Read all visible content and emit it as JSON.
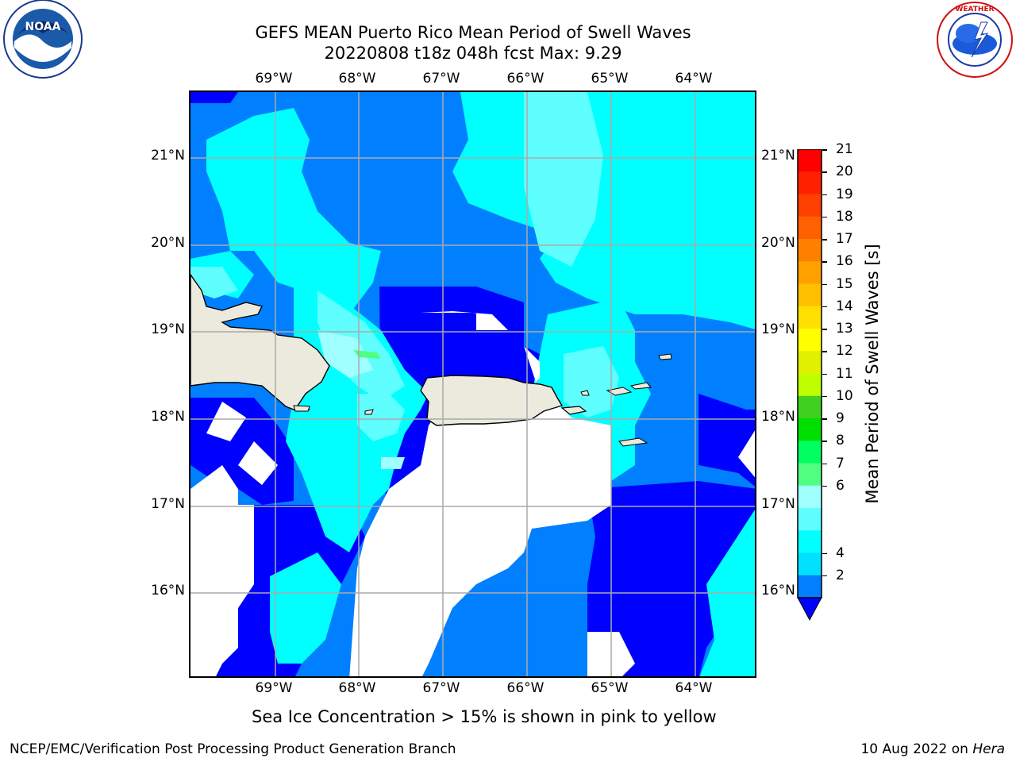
{
  "title": "GEFS MEAN Puerto Rico Mean Period of Swell Waves",
  "subtitle": "20220808 t18z 048h fcst   Max: 9.29",
  "lon_labels": [
    "69°W",
    "68°W",
    "67°W",
    "66°W",
    "65°W",
    "64°W"
  ],
  "lat_labels": [
    "21°N",
    "20°N",
    "19°N",
    "18°N",
    "17°N",
    "16°N"
  ],
  "colorbar": {
    "label": "Mean Period of Swell Waves [s]",
    "ticks": [
      "21",
      "20",
      "19",
      "18",
      "17",
      "16",
      "15",
      "14",
      "13",
      "12",
      "11",
      "10",
      "9",
      "8",
      "7",
      "6",
      "4",
      "2"
    ],
    "colors": [
      "#ff0000",
      "#ff2000",
      "#ff4000",
      "#ff6000",
      "#ff8000",
      "#ffa000",
      "#ffc000",
      "#ffe000",
      "#ffff00",
      "#e0f000",
      "#c0ff00",
      "#40d020",
      "#00e000",
      "#00ff60",
      "#50ff80",
      "#a0ffff",
      "#60ffff",
      "#00ffff",
      "#00e0ff",
      "#0080ff",
      "#0000ff"
    ]
  },
  "footer": {
    "note": "Sea Ice Concentration > 15% is shown in pink to yellow",
    "left": "NCEP/EMC/Verification Post Processing Product Generation Branch",
    "right_date": "10 Aug 2022 on ",
    "right_machine": "Hera"
  },
  "logos": {
    "left": "noaa-logo",
    "right": "nws-logo"
  }
}
